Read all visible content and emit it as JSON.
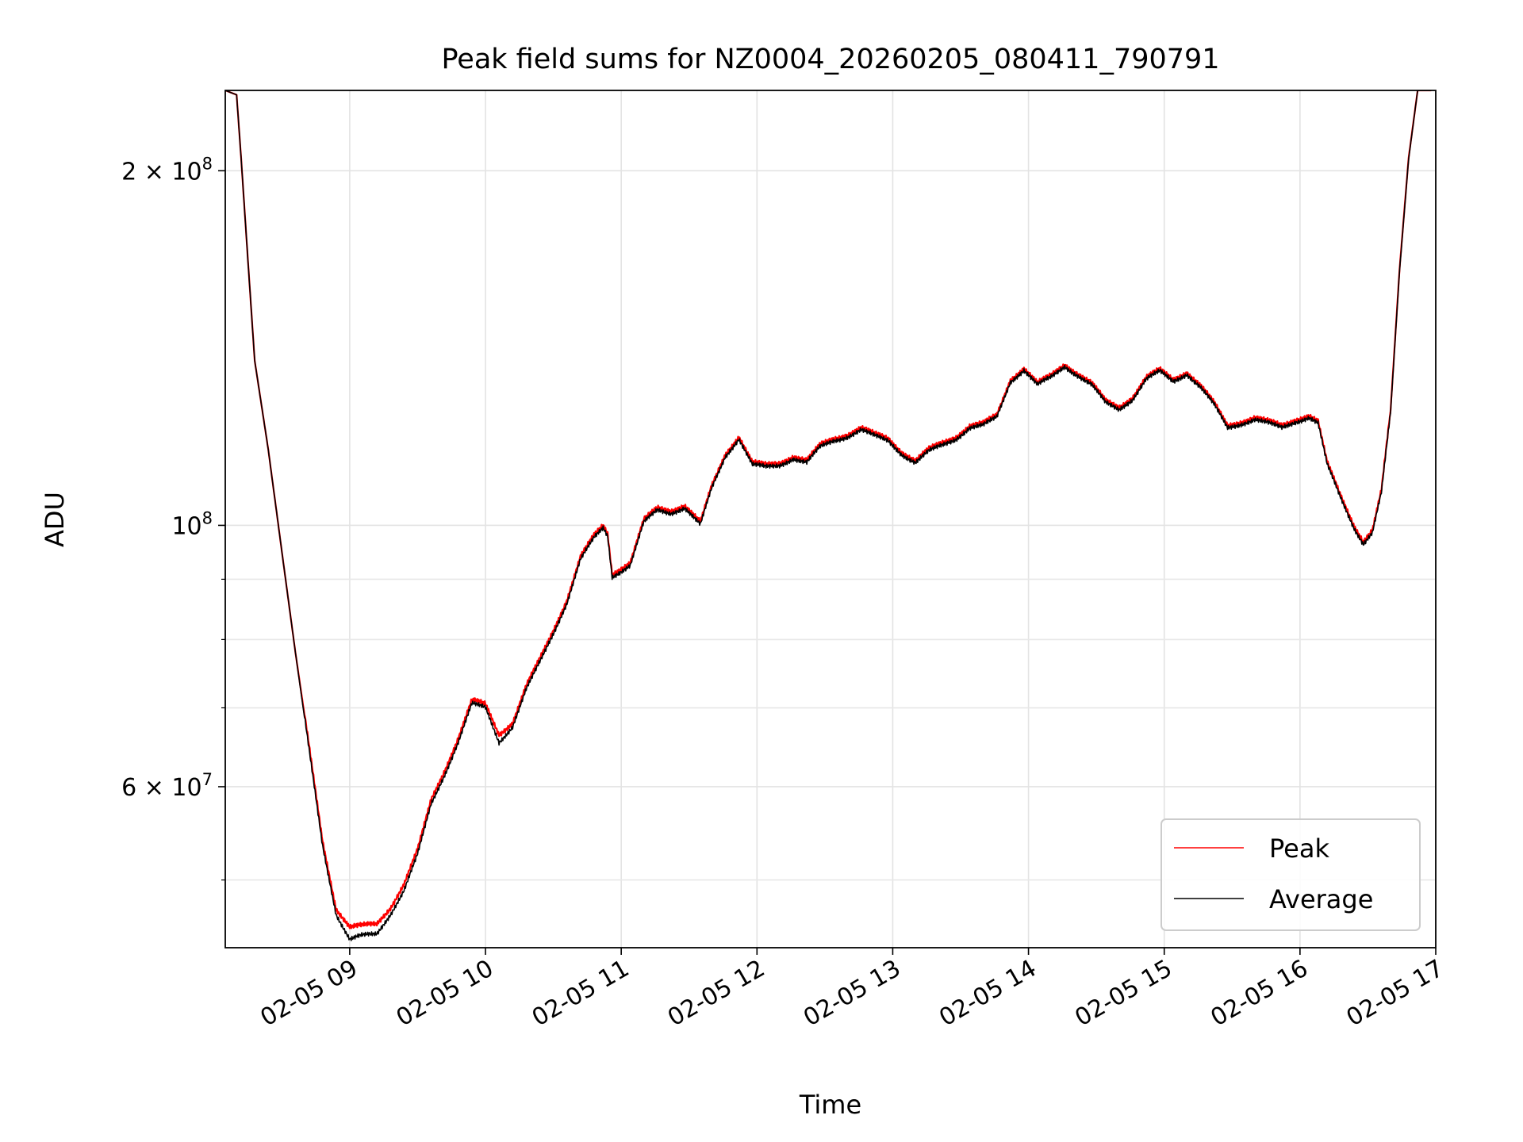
{
  "chart_data": {
    "type": "line",
    "title": "Peak field sums for NZ0004_20260205_080411_790791",
    "xlabel": "Time",
    "ylabel": "ADU",
    "x_scale": "time",
    "y_scale": "log",
    "xlim": [
      "2026-02-05 08:05",
      "2026-02-05 17:00"
    ],
    "ylim": [
      43800000,
      234000000
    ],
    "grid": true,
    "legend_position": "lower right",
    "x_ticks": [
      {
        "t": "2026-02-05 09:00",
        "label": "02-05 09"
      },
      {
        "t": "2026-02-05 10:00",
        "label": "02-05 10"
      },
      {
        "t": "2026-02-05 11:00",
        "label": "02-05 11"
      },
      {
        "t": "2026-02-05 12:00",
        "label": "02-05 12"
      },
      {
        "t": "2026-02-05 13:00",
        "label": "02-05 13"
      },
      {
        "t": "2026-02-05 14:00",
        "label": "02-05 14"
      },
      {
        "t": "2026-02-05 15:00",
        "label": "02-05 15"
      },
      {
        "t": "2026-02-05 16:00",
        "label": "02-05 16"
      },
      {
        "t": "2026-02-05 17:00",
        "label": "02-05 17"
      }
    ],
    "y_major_ticks": [
      {
        "value": 60000000,
        "base": "6",
        "exp": "7"
      },
      {
        "value": 100000000,
        "base": "10",
        "exp": "8"
      },
      {
        "value": 200000000,
        "base": "2",
        "exp": "8"
      }
    ],
    "y_minor_ticks": [
      50000000,
      70000000,
      80000000,
      90000000
    ],
    "series": [
      {
        "name": "Peak",
        "color": "#ff0000",
        "points": [
          [
            "08:05",
            234000000
          ],
          [
            "08:10",
            232000000
          ],
          [
            "08:12",
            205000000
          ],
          [
            "08:15",
            168000000
          ],
          [
            "08:18",
            138000000
          ],
          [
            "08:24",
            116000000
          ],
          [
            "08:30",
            95000000
          ],
          [
            "08:36",
            78000000
          ],
          [
            "08:42",
            65000000
          ],
          [
            "08:48",
            54000000
          ],
          [
            "08:54",
            47300000
          ],
          [
            "09:00",
            45600000
          ],
          [
            "09:05",
            45700000
          ],
          [
            "09:12",
            45900000
          ],
          [
            "09:18",
            47400000
          ],
          [
            "09:24",
            49600000
          ],
          [
            "09:30",
            53000000
          ],
          [
            "09:36",
            58500000
          ],
          [
            "09:42",
            62000000
          ],
          [
            "09:48",
            66000000
          ],
          [
            "09:54",
            71000000
          ],
          [
            "10:00",
            70500000
          ],
          [
            "10:06",
            66500000
          ],
          [
            "10:12",
            68000000
          ],
          [
            "10:18",
            73000000
          ],
          [
            "10:24",
            77000000
          ],
          [
            "10:30",
            81500000
          ],
          [
            "10:36",
            86500000
          ],
          [
            "10:42",
            94000000
          ],
          [
            "10:48",
            98000000
          ],
          [
            "10:52",
            100000000
          ],
          [
            "10:54",
            98500000
          ],
          [
            "10:56",
            91000000
          ],
          [
            "11:00",
            92000000
          ],
          [
            "11:04",
            93000000
          ],
          [
            "11:10",
            101000000
          ],
          [
            "11:16",
            103500000
          ],
          [
            "11:22",
            103000000
          ],
          [
            "11:28",
            104000000
          ],
          [
            "11:35",
            100500000
          ],
          [
            "11:40",
            108000000
          ],
          [
            "11:46",
            115000000
          ],
          [
            "11:52",
            119000000
          ],
          [
            "11:58",
            113000000
          ],
          [
            "12:04",
            112500000
          ],
          [
            "12:10",
            113000000
          ],
          [
            "12:16",
            114500000
          ],
          [
            "12:22",
            113500000
          ],
          [
            "12:28",
            117000000
          ],
          [
            "12:34",
            118500000
          ],
          [
            "12:40",
            119500000
          ],
          [
            "12:46",
            121000000
          ],
          [
            "12:52",
            119500000
          ],
          [
            "12:58",
            118500000
          ],
          [
            "13:04",
            115500000
          ],
          [
            "13:10",
            113500000
          ],
          [
            "13:16",
            116000000
          ],
          [
            "13:22",
            117500000
          ],
          [
            "13:28",
            119000000
          ],
          [
            "13:34",
            121500000
          ],
          [
            "13:40",
            122000000
          ],
          [
            "13:46",
            124000000
          ],
          [
            "13:52",
            133000000
          ],
          [
            "13:58",
            136000000
          ],
          [
            "14:04",
            132000000
          ],
          [
            "14:10",
            134000000
          ],
          [
            "14:16",
            137000000
          ],
          [
            "14:22",
            134500000
          ],
          [
            "14:28",
            132000000
          ],
          [
            "14:34",
            127500000
          ],
          [
            "14:40",
            126000000
          ],
          [
            "14:46",
            128500000
          ],
          [
            "14:52",
            133500000
          ],
          [
            "14:58",
            135500000
          ],
          [
            "15:04",
            133000000
          ],
          [
            "15:10",
            135000000
          ],
          [
            "15:16",
            131500000
          ],
          [
            "15:22",
            127000000
          ],
          [
            "15:28",
            121500000
          ],
          [
            "15:34",
            122500000
          ],
          [
            "15:40",
            123500000
          ],
          [
            "15:46",
            122500000
          ],
          [
            "15:52",
            121500000
          ],
          [
            "15:58",
            123000000
          ],
          [
            "16:04",
            124000000
          ],
          [
            "16:08",
            122500000
          ],
          [
            "16:12",
            113000000
          ],
          [
            "16:18",
            106000000
          ],
          [
            "16:24",
            100000000
          ],
          [
            "16:28",
            97000000
          ],
          [
            "16:32",
            99000000
          ],
          [
            "16:36",
            107000000
          ],
          [
            "16:40",
            125000000
          ],
          [
            "16:44",
            165000000
          ],
          [
            "16:48",
            205000000
          ],
          [
            "16:52",
            234000000
          ],
          [
            "16:58",
            234000000
          ]
        ]
      },
      {
        "name": "Average",
        "color": "#000000",
        "points": [
          [
            "08:05",
            234000000
          ],
          [
            "08:10",
            232000000
          ],
          [
            "08:12",
            205000000
          ],
          [
            "08:15",
            168000000
          ],
          [
            "08:18",
            138000000
          ],
          [
            "08:24",
            116000000
          ],
          [
            "08:30",
            95000000
          ],
          [
            "08:36",
            78000000
          ],
          [
            "08:42",
            64500000
          ],
          [
            "08:48",
            53500000
          ],
          [
            "08:54",
            46800000
          ],
          [
            "09:00",
            44500000
          ],
          [
            "09:05",
            44800000
          ],
          [
            "09:12",
            45000000
          ],
          [
            "09:18",
            46800000
          ],
          [
            "09:24",
            49000000
          ],
          [
            "09:30",
            52500000
          ],
          [
            "09:36",
            58000000
          ],
          [
            "09:42",
            61500000
          ],
          [
            "09:48",
            65500000
          ],
          [
            "09:54",
            70500000
          ],
          [
            "10:00",
            70000000
          ],
          [
            "10:06",
            65500000
          ],
          [
            "10:12",
            67500000
          ],
          [
            "10:18",
            72500000
          ],
          [
            "10:24",
            76500000
          ],
          [
            "10:30",
            81000000
          ],
          [
            "10:36",
            86000000
          ],
          [
            "10:42",
            93500000
          ],
          [
            "10:48",
            97500000
          ],
          [
            "10:52",
            99500000
          ],
          [
            "10:54",
            98000000
          ],
          [
            "10:56",
            90500000
          ],
          [
            "11:00",
            91500000
          ],
          [
            "11:04",
            92500000
          ],
          [
            "11:10",
            100500000
          ],
          [
            "11:16",
            103000000
          ],
          [
            "11:22",
            102500000
          ],
          [
            "11:28",
            103500000
          ],
          [
            "11:35",
            100000000
          ],
          [
            "11:40",
            107500000
          ],
          [
            "11:46",
            114500000
          ],
          [
            "11:52",
            118500000
          ],
          [
            "11:58",
            112500000
          ],
          [
            "12:04",
            112000000
          ],
          [
            "12:10",
            112500000
          ],
          [
            "12:16",
            114000000
          ],
          [
            "12:22",
            113000000
          ],
          [
            "12:28",
            116500000
          ],
          [
            "12:34",
            118000000
          ],
          [
            "12:40",
            119000000
          ],
          [
            "12:46",
            120500000
          ],
          [
            "12:52",
            119000000
          ],
          [
            "12:58",
            118000000
          ],
          [
            "13:04",
            115000000
          ],
          [
            "13:10",
            113000000
          ],
          [
            "13:16",
            115500000
          ],
          [
            "13:22",
            117000000
          ],
          [
            "13:28",
            118500000
          ],
          [
            "13:34",
            121000000
          ],
          [
            "13:40",
            121500000
          ],
          [
            "13:46",
            123500000
          ],
          [
            "13:52",
            132500000
          ],
          [
            "13:58",
            135500000
          ],
          [
            "14:04",
            131500000
          ],
          [
            "14:10",
            133500000
          ],
          [
            "14:16",
            136500000
          ],
          [
            "14:22",
            134000000
          ],
          [
            "14:28",
            131500000
          ],
          [
            "14:34",
            127000000
          ],
          [
            "14:40",
            125500000
          ],
          [
            "14:46",
            128000000
          ],
          [
            "14:52",
            133000000
          ],
          [
            "14:58",
            135000000
          ],
          [
            "15:04",
            132500000
          ],
          [
            "15:10",
            134500000
          ],
          [
            "15:16",
            131000000
          ],
          [
            "15:22",
            126500000
          ],
          [
            "15:28",
            121000000
          ],
          [
            "15:34",
            122000000
          ],
          [
            "15:40",
            123000000
          ],
          [
            "15:46",
            122000000
          ],
          [
            "15:52",
            121000000
          ],
          [
            "15:58",
            122500000
          ],
          [
            "16:04",
            123500000
          ],
          [
            "16:08",
            122000000
          ],
          [
            "16:12",
            112500000
          ],
          [
            "16:18",
            105500000
          ],
          [
            "16:24",
            99500000
          ],
          [
            "16:28",
            96500000
          ],
          [
            "16:32",
            98500000
          ],
          [
            "16:36",
            106500000
          ],
          [
            "16:40",
            124500000
          ],
          [
            "16:44",
            164500000
          ],
          [
            "16:48",
            204500000
          ],
          [
            "16:52",
            234000000
          ],
          [
            "16:58",
            234000000
          ]
        ]
      }
    ]
  }
}
